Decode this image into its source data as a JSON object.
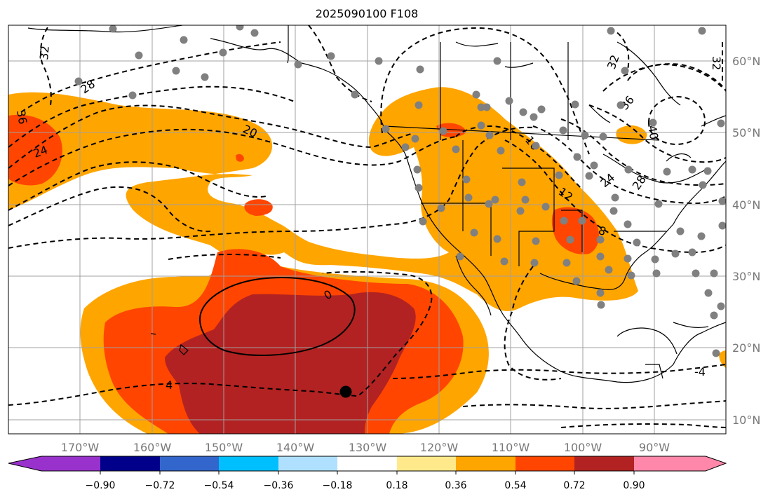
{
  "title": "2025090100 F108",
  "x_tick_labels": [
    "170°W",
    "160°W",
    "150°W",
    "140°W",
    "130°W",
    "120°W",
    "110°W",
    "100°W",
    "90°W"
  ],
  "y_tick_labels": [
    "60°N",
    "50°N",
    "40°N",
    "30°N",
    "20°N",
    "10°N"
  ],
  "colorbar": {
    "tick_labels": [
      "−0.90",
      "−0.72",
      "−0.54",
      "−0.36",
      "−0.18",
      "0.18",
      "0.36",
      "0.54",
      "0.72",
      "0.90"
    ],
    "colors": [
      "#9932cc",
      "#00008b",
      "#3366cc",
      "#00bfff",
      "#b0e0ff",
      "#ffffff",
      "#ffe98a",
      "#ffa500",
      "#ff4500",
      "#b22222",
      "#ff88aa"
    ]
  },
  "contour_labels": [
    "32",
    "28",
    "36",
    "24",
    "20",
    "16",
    "12",
    "8",
    "0",
    "4",
    "-4",
    "32",
    "36",
    "40",
    "24",
    "28",
    "32"
  ],
  "colors": {
    "land_line": "#000000",
    "grid": "#a0a0a0",
    "station_dot": "#808080"
  }
}
